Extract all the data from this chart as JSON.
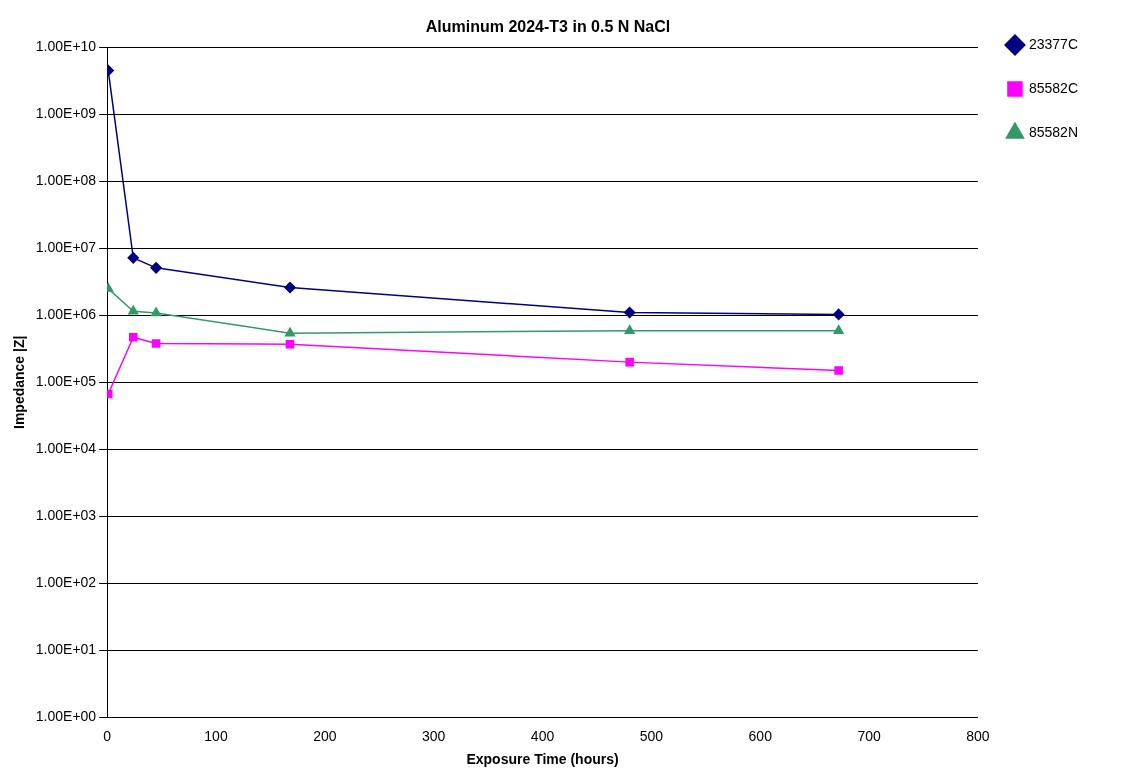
{
  "chart_data": {
    "type": "line",
    "title": "Aluminum 2024-T3 in 0.5 N NaCl",
    "xlabel": "Exposure Time (hours)",
    "ylabel": "Impedance |Z|",
    "x": [
      1,
      24,
      45,
      168,
      480,
      672
    ],
    "series": [
      {
        "name": "23377C",
        "color": "#000080",
        "marker": "diamond",
        "values": [
          4500000000.0,
          7200000.0,
          5100000.0,
          2600000.0,
          1100000.0,
          1030000.0
        ]
      },
      {
        "name": "85582C",
        "color": "#ff00ff",
        "marker": "square",
        "values": [
          67000.0,
          470000.0,
          380000.0,
          370000.0,
          200000.0,
          150000.0
        ]
      },
      {
        "name": "85582N",
        "color": "#339966",
        "marker": "triangle",
        "values": [
          2500000.0,
          1150000.0,
          1080000.0,
          540000.0,
          590000.0,
          590000.0
        ]
      }
    ],
    "xlim": [
      0,
      800
    ],
    "xticks": [
      0,
      100,
      200,
      300,
      400,
      500,
      600,
      700,
      800
    ],
    "ylim": [
      1,
      10000000000.0
    ],
    "yticks": [
      {
        "value": 1,
        "label": "1.00E+00"
      },
      {
        "value": 10,
        "label": "1.00E+01"
      },
      {
        "value": 100,
        "label": "1.00E+02"
      },
      {
        "value": 1000,
        "label": "1.00E+03"
      },
      {
        "value": 10000,
        "label": "1.00E+04"
      },
      {
        "value": 100000,
        "label": "1.00E+05"
      },
      {
        "value": 1000000,
        "label": "1.00E+06"
      },
      {
        "value": 10000000,
        "label": "1.00E+07"
      },
      {
        "value": 100000000,
        "label": "1.00E+08"
      },
      {
        "value": 1000000000,
        "label": "1.00E+09"
      },
      {
        "value": 10000000000,
        "label": "1.00E+10"
      }
    ],
    "log": "y",
    "grid": "y",
    "legend": "top right",
    "line_style": "solid"
  }
}
